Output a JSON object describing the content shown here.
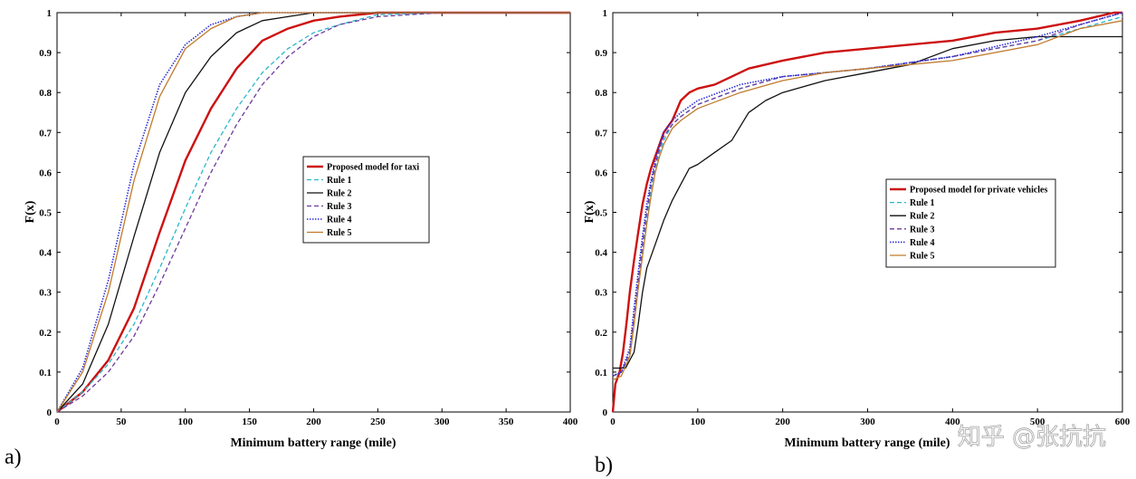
{
  "chart_data": [
    {
      "type": "line",
      "panel_label": "a)",
      "xlabel": "Minimum battery range (mile)",
      "ylabel": "F(x)",
      "xlim": [
        0,
        400
      ],
      "ylim": [
        0,
        1
      ],
      "xticks": [
        "0",
        "50",
        "100",
        "150",
        "200",
        "250",
        "300",
        "350",
        "400"
      ],
      "yticks": [
        "0",
        "0.1",
        "0.2",
        "0.3",
        "0.4",
        "0.5",
        "0.6",
        "0.7",
        "0.8",
        "0.9",
        "1"
      ],
      "grid": false,
      "legend_position": "center-right",
      "series": [
        {
          "name": "Proposed model for taxi",
          "color": "#cc1111",
          "dash": "solid",
          "width": 2.4,
          "x": [
            0,
            20,
            40,
            60,
            80,
            100,
            120,
            140,
            160,
            180,
            200,
            220,
            250,
            300,
            400
          ],
          "y": [
            0,
            0.05,
            0.13,
            0.26,
            0.45,
            0.63,
            0.76,
            0.86,
            0.93,
            0.96,
            0.98,
            0.99,
            1.0,
            1.0,
            1.0
          ]
        },
        {
          "name": "Rule 1",
          "color": "#2ab7c9",
          "dash": "dashed",
          "width": 1.3,
          "x": [
            0,
            20,
            40,
            60,
            80,
            100,
            120,
            140,
            160,
            180,
            200,
            220,
            250,
            300,
            400
          ],
          "y": [
            0,
            0.05,
            0.12,
            0.22,
            0.36,
            0.51,
            0.65,
            0.76,
            0.85,
            0.91,
            0.95,
            0.97,
            0.995,
            1.0,
            1.0
          ]
        },
        {
          "name": "Rule 2",
          "color": "#111111",
          "dash": "solid",
          "width": 1.3,
          "x": [
            0,
            20,
            40,
            60,
            80,
            100,
            120,
            140,
            160,
            180,
            200,
            250,
            300,
            400
          ],
          "y": [
            0,
            0.07,
            0.22,
            0.44,
            0.65,
            0.8,
            0.89,
            0.95,
            0.98,
            0.99,
            1.0,
            1.0,
            1.0,
            1.0
          ]
        },
        {
          "name": "Rule 3",
          "color": "#6b3a9e",
          "dash": "dashed",
          "width": 1.3,
          "x": [
            0,
            20,
            40,
            60,
            80,
            100,
            120,
            140,
            160,
            180,
            200,
            220,
            250,
            300,
            400
          ],
          "y": [
            0,
            0.04,
            0.1,
            0.19,
            0.32,
            0.46,
            0.6,
            0.72,
            0.82,
            0.89,
            0.94,
            0.97,
            0.99,
            1.0,
            1.0
          ]
        },
        {
          "name": "Rule 4",
          "color": "#2b2bd9",
          "dash": "dotted",
          "width": 1.6,
          "x": [
            0,
            20,
            40,
            60,
            80,
            100,
            120,
            140,
            160,
            180,
            200,
            300,
            400
          ],
          "y": [
            0,
            0.11,
            0.33,
            0.62,
            0.82,
            0.92,
            0.97,
            0.99,
            1.0,
            1.0,
            1.0,
            1.0,
            1.0
          ]
        },
        {
          "name": "Rule 5",
          "color": "#c07a2c",
          "dash": "solid",
          "width": 1.3,
          "x": [
            0,
            20,
            40,
            60,
            80,
            100,
            120,
            140,
            160,
            180,
            200,
            300,
            400
          ],
          "y": [
            0,
            0.1,
            0.3,
            0.58,
            0.79,
            0.91,
            0.96,
            0.99,
            1.0,
            1.0,
            1.0,
            1.0,
            1.0
          ]
        }
      ]
    },
    {
      "type": "line",
      "panel_label": "b)",
      "xlabel": "Minimum battery range (mile)",
      "ylabel": "F(x)",
      "xlim": [
        0,
        600
      ],
      "ylim": [
        0,
        1
      ],
      "xticks": [
        "0",
        "100",
        "200",
        "300",
        "400",
        "500",
        "600"
      ],
      "yticks": [
        "0",
        "0.1",
        "0.2",
        "0.3",
        "0.4",
        "0.5",
        "0.6",
        "0.7",
        "0.8",
        "0.9",
        "1"
      ],
      "grid": false,
      "legend_position": "center-right",
      "series": [
        {
          "name": "Proposed model for private vehicles",
          "color": "#cc1111",
          "dash": "solid",
          "width": 2.4,
          "x": [
            0,
            3,
            8,
            12,
            16,
            20,
            25,
            30,
            35,
            40,
            45,
            50,
            55,
            60,
            70,
            80,
            90,
            100,
            120,
            140,
            160,
            200,
            250,
            300,
            350,
            400,
            450,
            500,
            550,
            590,
            600
          ],
          "y": [
            0,
            0.07,
            0.1,
            0.15,
            0.22,
            0.3,
            0.38,
            0.45,
            0.52,
            0.57,
            0.61,
            0.64,
            0.67,
            0.7,
            0.73,
            0.78,
            0.8,
            0.81,
            0.82,
            0.84,
            0.86,
            0.88,
            0.9,
            0.91,
            0.92,
            0.93,
            0.95,
            0.96,
            0.98,
            1.0,
            1.0
          ]
        },
        {
          "name": "Rule 1",
          "color": "#2ab7c9",
          "dash": "dashed",
          "width": 1.3,
          "x": [
            0,
            10,
            20,
            25,
            30,
            35,
            40,
            45,
            50,
            55,
            60,
            70,
            80,
            100,
            150,
            200,
            250,
            300,
            400,
            500,
            550,
            600
          ],
          "y": [
            0.09,
            0.1,
            0.14,
            0.22,
            0.31,
            0.4,
            0.48,
            0.56,
            0.61,
            0.65,
            0.68,
            0.72,
            0.74,
            0.77,
            0.81,
            0.84,
            0.85,
            0.86,
            0.89,
            0.93,
            0.96,
            0.99
          ]
        },
        {
          "name": "Rule 2",
          "color": "#111111",
          "dash": "solid",
          "width": 1.3,
          "x": [
            0,
            15,
            25,
            30,
            35,
            40,
            50,
            60,
            70,
            80,
            90,
            100,
            120,
            140,
            160,
            180,
            200,
            250,
            300,
            350,
            400,
            450,
            500,
            550,
            600
          ],
          "y": [
            0.11,
            0.11,
            0.15,
            0.22,
            0.3,
            0.36,
            0.42,
            0.48,
            0.53,
            0.57,
            0.61,
            0.62,
            0.65,
            0.68,
            0.75,
            0.78,
            0.8,
            0.83,
            0.85,
            0.87,
            0.91,
            0.93,
            0.94,
            0.94,
            0.94
          ]
        },
        {
          "name": "Rule 3",
          "color": "#6b3a9e",
          "dash": "dashed",
          "width": 1.3,
          "x": [
            0,
            10,
            20,
            25,
            30,
            35,
            40,
            45,
            50,
            55,
            60,
            70,
            80,
            100,
            150,
            200,
            250,
            300,
            400,
            500,
            550,
            600
          ],
          "y": [
            0.09,
            0.1,
            0.15,
            0.24,
            0.33,
            0.42,
            0.5,
            0.57,
            0.62,
            0.66,
            0.69,
            0.72,
            0.74,
            0.77,
            0.81,
            0.84,
            0.85,
            0.86,
            0.89,
            0.93,
            0.97,
            1.0
          ]
        },
        {
          "name": "Rule 4",
          "color": "#2b2bd9",
          "dash": "dotted",
          "width": 1.6,
          "x": [
            0,
            10,
            20,
            25,
            30,
            35,
            40,
            45,
            50,
            55,
            60,
            70,
            80,
            100,
            150,
            200,
            250,
            300,
            400,
            500,
            550,
            600
          ],
          "y": [
            0.09,
            0.1,
            0.16,
            0.26,
            0.35,
            0.44,
            0.52,
            0.58,
            0.63,
            0.67,
            0.7,
            0.73,
            0.75,
            0.78,
            0.82,
            0.84,
            0.85,
            0.86,
            0.89,
            0.94,
            0.97,
            1.0
          ]
        },
        {
          "name": "Rule 5",
          "color": "#c07a2c",
          "dash": "solid",
          "width": 1.3,
          "x": [
            0,
            10,
            20,
            25,
            30,
            35,
            40,
            45,
            50,
            55,
            60,
            70,
            80,
            100,
            150,
            200,
            250,
            300,
            400,
            500,
            550,
            600
          ],
          "y": [
            0.08,
            0.09,
            0.14,
            0.22,
            0.31,
            0.39,
            0.47,
            0.54,
            0.6,
            0.64,
            0.67,
            0.71,
            0.73,
            0.76,
            0.8,
            0.83,
            0.85,
            0.86,
            0.88,
            0.92,
            0.96,
            0.98
          ]
        }
      ]
    }
  ],
  "watermark": {
    "text": "知乎 @张抗抗"
  }
}
